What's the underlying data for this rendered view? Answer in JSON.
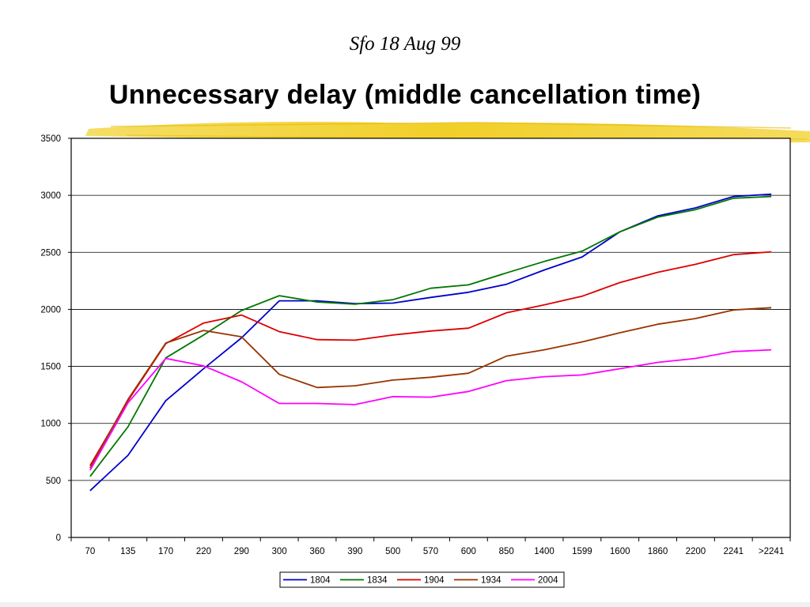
{
  "slide": {
    "subtitle": "Sfo 18 Aug 99",
    "title": "Unnecessary delay (middle cancellation time)"
  },
  "chart_data": {
    "type": "line",
    "categories": [
      "70",
      "135",
      "170",
      "220",
      "290",
      "300",
      "360",
      "390",
      "500",
      "570",
      "600",
      "850",
      "1400",
      "1599",
      "1600",
      "1860",
      "2200",
      "2241",
      ">2241"
    ],
    "ylim": [
      0,
      3500
    ],
    "yticks": [
      0,
      500,
      1000,
      1500,
      2000,
      2500,
      3000,
      3500
    ],
    "grid": true,
    "legend_position": "bottom",
    "series": [
      {
        "name": "1804",
        "color": "#0000cc",
        "values": [
          410,
          720,
          1200,
          1480,
          1750,
          2075,
          2075,
          2050,
          2055,
          2105,
          2150,
          2220,
          2345,
          2460,
          2680,
          2820,
          2890,
          2990,
          3010
        ]
      },
      {
        "name": "1834",
        "color": "#007700",
        "values": [
          535,
          970,
          1575,
          1775,
          1990,
          2120,
          2065,
          2045,
          2085,
          2185,
          2215,
          2320,
          2420,
          2510,
          2680,
          2810,
          2875,
          2975,
          2990
        ]
      },
      {
        "name": "1904",
        "color": "#dd0000",
        "values": [
          630,
          1200,
          1700,
          1880,
          1950,
          1805,
          1735,
          1730,
          1775,
          1810,
          1835,
          1970,
          2040,
          2115,
          2235,
          2325,
          2395,
          2480,
          2505
        ]
      },
      {
        "name": "1934",
        "color": "#993300",
        "values": [
          610,
          1210,
          1705,
          1815,
          1760,
          1430,
          1315,
          1330,
          1380,
          1405,
          1440,
          1590,
          1645,
          1715,
          1795,
          1870,
          1920,
          1995,
          2015
        ]
      },
      {
        "name": "2004",
        "color": "#ff00ff",
        "values": [
          590,
          1180,
          1570,
          1505,
          1365,
          1175,
          1175,
          1165,
          1235,
          1230,
          1280,
          1375,
          1410,
          1425,
          1480,
          1535,
          1570,
          1630,
          1645
        ]
      }
    ]
  }
}
